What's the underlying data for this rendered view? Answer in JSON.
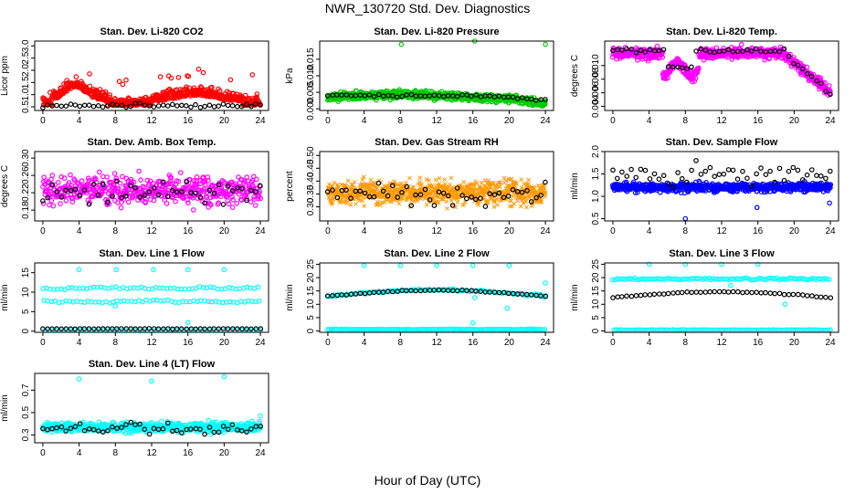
{
  "figure": {
    "title": "NWR_130720  Std. Dev. Diagnostics",
    "xlabel": "Hour of Day (UTC)"
  },
  "chart_data": [
    {
      "type": "scatter",
      "title": "Stan. Dev. Li-820 CO2",
      "ylabel": "Licor ppm",
      "xlim": [
        -0.9,
        24.9
      ],
      "xticks": [
        0,
        4,
        8,
        12,
        16,
        20,
        24
      ],
      "ylim": [
        0.35,
        3.2
      ],
      "yticks": [
        0.5,
        1.0,
        1.5,
        2.0,
        2.5,
        3.0
      ],
      "ytick_labels": [
        "0.5",
        "1.0",
        "1.5",
        "2.0",
        "2.5",
        "3.0"
      ],
      "series": [
        {
          "color": "#ff0000",
          "marker": "open-circle",
          "model": {
            "kind": "co2",
            "n": 620,
            "seed": 11
          }
        },
        {
          "color": "#000000",
          "marker": "open-circle",
          "model": {
            "kind": "flat",
            "base": 0.55,
            "noise": 0.08,
            "n": 48,
            "seed": 12
          }
        }
      ]
    },
    {
      "type": "scatter",
      "title": "Stan. Dev. Li-820 Pressure",
      "ylabel": "kPa",
      "xlim": [
        -0.9,
        24.9
      ],
      "xticks": [
        0,
        4,
        8,
        12,
        16,
        20,
        24
      ],
      "ylim": [
        -0.0005,
        0.0205
      ],
      "yticks": [
        0.0,
        0.005,
        0.01,
        0.015
      ],
      "ytick_labels": [
        "0.000",
        "0.005",
        "0.010",
        "0.015"
      ],
      "series": [
        {
          "color": "#00cc00",
          "marker": "open-circle",
          "model": {
            "kind": "pressure",
            "n": 900,
            "seed": 21
          },
          "outliers": [
            [
              8.1,
              0.0195
            ],
            [
              16.2,
              0.0205
            ],
            [
              24.0,
              0.0195
            ]
          ]
        },
        {
          "color": "#000000",
          "marker": "open-circle",
          "model": {
            "kind": "pressure-mean",
            "n": 48,
            "seed": 22
          }
        }
      ]
    },
    {
      "type": "scatter",
      "title": "Stan. Dev. Li-820 Temp.",
      "ylabel": "degrees C",
      "xlim": [
        -0.9,
        24.9
      ],
      "xticks": [
        0,
        4,
        8,
        12,
        16,
        20,
        24
      ],
      "ylim": [
        0.0034,
        0.0136
      ],
      "yticks": [
        0.004,
        0.006,
        0.008,
        0.01
      ],
      "ytick_labels": [
        "0.004",
        "0.006",
        "0.008",
        "0.010"
      ],
      "series": [
        {
          "color": "#ff00ff",
          "marker": "open-circle",
          "model": {
            "kind": "temp",
            "n": 700,
            "seed": 31
          }
        },
        {
          "color": "#000000",
          "marker": "open-circle",
          "model": {
            "kind": "temp-mean",
            "n": 48,
            "seed": 32
          }
        }
      ]
    },
    {
      "type": "scatter",
      "title": "Stan. Dev. Amb. Box Temp.",
      "ylabel": "degrees C",
      "xlim": [
        -0.9,
        24.9
      ],
      "xticks": [
        0,
        4,
        8,
        12,
        16,
        20,
        24
      ],
      "ylim": [
        0.155,
        0.315
      ],
      "yticks": [
        0.18,
        0.22,
        0.26,
        0.3
      ],
      "ytick_labels": [
        "0.18",
        "0.22",
        "0.26",
        "0.30"
      ],
      "series": [
        {
          "color": "#ff00ff",
          "marker": "open-circle",
          "model": {
            "kind": "flat",
            "base": 0.225,
            "noise": 0.03,
            "n": 520,
            "seed": 41
          }
        },
        {
          "color": "#000000",
          "marker": "open-circle",
          "model": {
            "kind": "flat",
            "base": 0.22,
            "noise": 0.025,
            "n": 48,
            "seed": 42
          }
        }
      ]
    },
    {
      "type": "scatter",
      "title": "Stan. Dev. Gas Stream RH",
      "ylabel": "percent",
      "xlim": [
        -0.9,
        24.9
      ],
      "xticks": [
        0,
        4,
        8,
        12,
        16,
        20,
        24
      ],
      "ylim": [
        0.245,
        0.515
      ],
      "yticks": [
        0.3,
        0.35,
        0.4,
        0.45,
        0.5
      ],
      "ytick_labels": [
        "0.30",
        "0.35",
        "0.40",
        "0.45",
        "0.50"
      ],
      "series": [
        {
          "color": "#ff9900",
          "marker": "x",
          "model": {
            "kind": "flat",
            "base": 0.355,
            "noise": 0.045,
            "n": 820,
            "seed": 51
          }
        },
        {
          "color": "#000000",
          "marker": "open-circle",
          "model": {
            "kind": "flat",
            "base": 0.35,
            "noise": 0.035,
            "n": 48,
            "seed": 52
          }
        }
      ]
    },
    {
      "type": "scatter",
      "title": "Stan. Dev. Sample Flow",
      "ylabel": "ml/min",
      "xlim": [
        -0.9,
        24.9
      ],
      "xticks": [
        0,
        4,
        8,
        12,
        16,
        20,
        24
      ],
      "ylim": [
        0.45,
        2.0
      ],
      "yticks": [
        0.5,
        1.0,
        1.5,
        2.0
      ],
      "ytick_labels": [
        "0.5",
        "1.0",
        "1.5",
        "2.0"
      ],
      "series": [
        {
          "color": "#0000ff",
          "marker": "open-circle",
          "model": {
            "kind": "flat",
            "base": 1.2,
            "noise": 0.09,
            "n": 720,
            "seed": 61
          },
          "outliers": [
            [
              8.0,
              0.5
            ],
            [
              15.9,
              0.75
            ],
            [
              23.9,
              0.85
            ]
          ]
        },
        {
          "color": "#000000",
          "marker": "open-circle",
          "model": {
            "kind": "flat",
            "base": 1.5,
            "noise": 0.25,
            "n": 48,
            "seed": 62
          }
        }
      ]
    },
    {
      "type": "scatter",
      "title": "Stan. Dev. Line 1 Flow",
      "ylabel": "ml/min",
      "xlim": [
        -0.9,
        24.9
      ],
      "xticks": [
        0,
        4,
        8,
        12,
        16,
        20,
        24
      ],
      "ylim": [
        -0.3,
        17.5
      ],
      "yticks": [
        0,
        5,
        10,
        15
      ],
      "ytick_labels": [
        "0",
        "5",
        "10",
        "15"
      ],
      "series": [
        {
          "color": "#00ffff",
          "marker": "open-circle",
          "model": {
            "kind": "bands",
            "levels": [
              11,
              7.6,
              0.2
            ],
            "noise": 0.35,
            "n": 180,
            "seed": 71
          },
          "outliers": [
            [
              4.0,
              15.8
            ],
            [
              8.1,
              15.8
            ],
            [
              12.2,
              15.8
            ],
            [
              16.0,
              15.8
            ],
            [
              20.0,
              15.8
            ],
            [
              16.0,
              2.2
            ],
            [
              8.0,
              6.5
            ]
          ]
        },
        {
          "color": "#000000",
          "marker": "open-circle",
          "model": {
            "kind": "flat",
            "base": 0.6,
            "noise": 0.05,
            "n": 48,
            "seed": 72
          }
        }
      ]
    },
    {
      "type": "scatter",
      "title": "Stan. Dev. Line 2 Flow",
      "ylabel": "ml/min",
      "xlim": [
        -0.9,
        24.9
      ],
      "xticks": [
        0,
        4,
        8,
        12,
        16,
        20,
        24
      ],
      "ylim": [
        -0.5,
        25.5
      ],
      "yticks": [
        0,
        5,
        10,
        15,
        20,
        25
      ],
      "ytick_labels": [
        "0",
        "5",
        "10",
        "15",
        "20",
        "25"
      ],
      "series": [
        {
          "color": "#00ffff",
          "marker": "open-circle",
          "model": {
            "kind": "line2",
            "n": 260,
            "seed": 81
          },
          "outliers": [
            [
              4.0,
              24.5
            ],
            [
              8.0,
              24.5
            ],
            [
              12.0,
              24.5
            ],
            [
              16.0,
              24.5
            ],
            [
              20.0,
              24.5
            ],
            [
              24.0,
              18
            ],
            [
              16.0,
              3
            ],
            [
              19.8,
              8.5
            ],
            [
              16.2,
              12.5
            ]
          ]
        },
        {
          "color": "#000000",
          "marker": "open-circle",
          "model": {
            "kind": "line2-mean",
            "n": 48,
            "seed": 82
          }
        }
      ]
    },
    {
      "type": "scatter",
      "title": "Stan. Dev. Line 3 Flow",
      "ylabel": "ml/min",
      "xlim": [
        -0.9,
        24.9
      ],
      "xticks": [
        0,
        4,
        8,
        12,
        16,
        20,
        24
      ],
      "ylim": [
        -0.5,
        25.5
      ],
      "yticks": [
        0,
        5,
        10,
        15,
        20,
        25
      ],
      "ytick_labels": [
        "0",
        "5",
        "10",
        "15",
        "20",
        "25"
      ],
      "series": [
        {
          "color": "#00ffff",
          "marker": "open-circle",
          "model": {
            "kind": "bands",
            "levels": [
              19.5,
              0.4
            ],
            "noise": 0.4,
            "n": 200,
            "seed": 91
          },
          "outliers": [
            [
              4.0,
              25
            ],
            [
              8.0,
              25
            ],
            [
              12.0,
              25
            ],
            [
              16.0,
              25
            ],
            [
              19.0,
              10
            ],
            [
              13.0,
              17
            ]
          ]
        },
        {
          "color": "#000000",
          "marker": "open-circle",
          "model": {
            "kind": "line3-mean",
            "n": 48,
            "seed": 92
          }
        }
      ]
    },
    {
      "type": "scatter",
      "title": "Stan. Dev. Line 4 (LT) Flow",
      "ylabel": "ml/min",
      "xlim": [
        -0.9,
        24.9
      ],
      "xticks": [
        0,
        4,
        8,
        12,
        16,
        20,
        24
      ],
      "ylim": [
        0.23,
        0.85
      ],
      "yticks": [
        0.3,
        0.5,
        0.7
      ],
      "ytick_labels": [
        "0.3",
        "0.5",
        "0.7"
      ],
      "series": [
        {
          "color": "#00ffff",
          "marker": "open-circle",
          "model": {
            "kind": "flat",
            "base": 0.37,
            "noise": 0.04,
            "n": 640,
            "seed": 101
          },
          "outliers": [
            [
              4.0,
              0.8
            ],
            [
              12.0,
              0.78
            ],
            [
              20.0,
              0.82
            ],
            [
              24.0,
              0.47
            ]
          ]
        },
        {
          "color": "#000000",
          "marker": "open-circle",
          "model": {
            "kind": "flat",
            "base": 0.36,
            "noise": 0.045,
            "n": 48,
            "seed": 102
          }
        }
      ]
    }
  ]
}
